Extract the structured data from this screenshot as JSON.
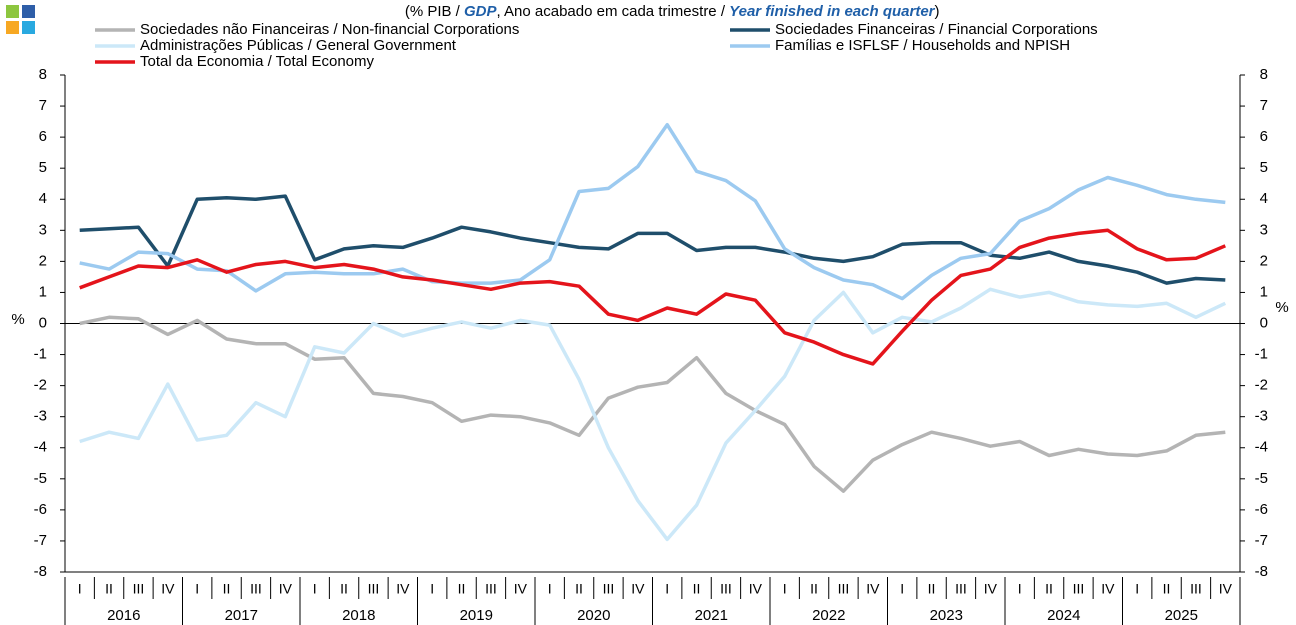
{
  "chart_data": {
    "type": "line",
    "subtitle": [
      "(% PIB / ",
      "GDP",
      ", Ano acabado em cada trimestre / ",
      "Year finished in each quarter",
      ")"
    ],
    "categories": [
      "I",
      "II",
      "III",
      "IV",
      "I",
      "II",
      "III",
      "IV",
      "I",
      "II",
      "III",
      "IV",
      "I",
      "II",
      "III",
      "IV",
      "I",
      "II",
      "III",
      "IV",
      "I",
      "II",
      "III",
      "IV",
      "I",
      "II",
      "III",
      "IV",
      "I",
      "II",
      "III",
      "IV",
      "I",
      "II",
      "III",
      "IV",
      "I",
      "II",
      "III",
      "IV"
    ],
    "years": [
      "2016",
      "2017",
      "2018",
      "2019",
      "2020",
      "2021",
      "2022",
      "2023",
      "2024",
      "2025"
    ],
    "ylabel": "%",
    "y2label": "%",
    "ylim": [
      -8,
      8
    ],
    "yticks": [
      -8,
      -7,
      -6,
      -5,
      -4,
      -3,
      -2,
      -1,
      0,
      1,
      2,
      3,
      4,
      5,
      6,
      7,
      8
    ],
    "y2lim": [
      -8,
      8
    ],
    "y2ticks": [
      -8,
      -7,
      -6,
      -5,
      -4,
      -3,
      -2,
      -1,
      0,
      1,
      2,
      3,
      4,
      5,
      6,
      7,
      8
    ],
    "series": [
      {
        "name": "Sociedades não Financeiras / Non-financial Corporations",
        "color": "#b4b4b4",
        "values": [
          0,
          0.2,
          0.15,
          -0.35,
          0.1,
          -0.5,
          -0.65,
          -0.65,
          -1.15,
          -1.1,
          -2.25,
          -2.35,
          -2.55,
          -3.15,
          -2.95,
          -3.0,
          -3.2,
          -3.6,
          -2.4,
          -2.05,
          -1.9,
          -1.1,
          -2.25,
          -2.8,
          -3.25,
          -4.6,
          -5.4,
          -4.4,
          -3.9,
          -3.5,
          -3.7,
          -3.95,
          -3.8,
          -4.25,
          -4.05,
          -4.2,
          -4.25,
          -4.1,
          -3.6,
          -3.5
        ]
      },
      {
        "name": "Sociedades Financeiras / Financial Corporations",
        "color": "#1f4e6b",
        "values": [
          3.0,
          3.05,
          3.1,
          1.85,
          4.0,
          4.05,
          4.0,
          4.1,
          2.05,
          2.4,
          2.5,
          2.45,
          2.75,
          3.1,
          2.95,
          2.75,
          2.6,
          2.45,
          2.4,
          2.9,
          2.9,
          2.35,
          2.45,
          2.45,
          2.3,
          2.1,
          2.0,
          2.15,
          2.55,
          2.6,
          2.6,
          2.2,
          2.1,
          2.3,
          2.0,
          1.85,
          1.65,
          1.3,
          1.45,
          1.4
        ]
      },
      {
        "name": "Administrações Públicas / General Government",
        "color": "#cce8f8",
        "values": [
          -3.8,
          -3.5,
          -3.7,
          -1.95,
          -3.75,
          -3.6,
          -2.55,
          -3.0,
          -0.75,
          -0.95,
          0.0,
          -0.4,
          -0.15,
          0.05,
          -0.15,
          0.1,
          -0.05,
          -1.8,
          -4.0,
          -5.7,
          -6.95,
          -5.85,
          -3.85,
          -2.8,
          -1.7,
          0.1,
          1.0,
          -0.3,
          0.2,
          0.05,
          0.5,
          1.1,
          0.85,
          1.0,
          0.7,
          0.6,
          0.55,
          0.65,
          0.2,
          0.65
        ]
      },
      {
        "name": "Famílias e ISFLSF / Households and NPISH",
        "color": "#9ccaf0",
        "values": [
          1.95,
          1.75,
          2.3,
          2.25,
          1.75,
          1.7,
          1.05,
          1.6,
          1.65,
          1.6,
          1.6,
          1.75,
          1.35,
          1.3,
          1.3,
          1.4,
          2.05,
          4.25,
          4.35,
          5.05,
          6.4,
          4.9,
          4.6,
          3.95,
          2.4,
          1.8,
          1.4,
          1.25,
          0.8,
          1.55,
          2.1,
          2.25,
          3.3,
          3.7,
          4.3,
          4.7,
          4.45,
          4.15,
          4.0,
          3.9
        ]
      },
      {
        "name": "Total da Economia / Total Economy",
        "color": "#e4141b",
        "values": [
          1.15,
          1.5,
          1.85,
          1.8,
          2.05,
          1.65,
          1.9,
          2.0,
          1.8,
          1.9,
          1.75,
          1.5,
          1.4,
          1.25,
          1.1,
          1.3,
          1.35,
          1.2,
          0.3,
          0.1,
          0.5,
          0.3,
          0.95,
          0.75,
          -0.3,
          -0.6,
          -1.0,
          -1.3,
          -0.25,
          0.75,
          1.55,
          1.75,
          2.45,
          2.75,
          2.9,
          3.0,
          2.4,
          2.05,
          2.1,
          2.5
        ]
      }
    ]
  }
}
